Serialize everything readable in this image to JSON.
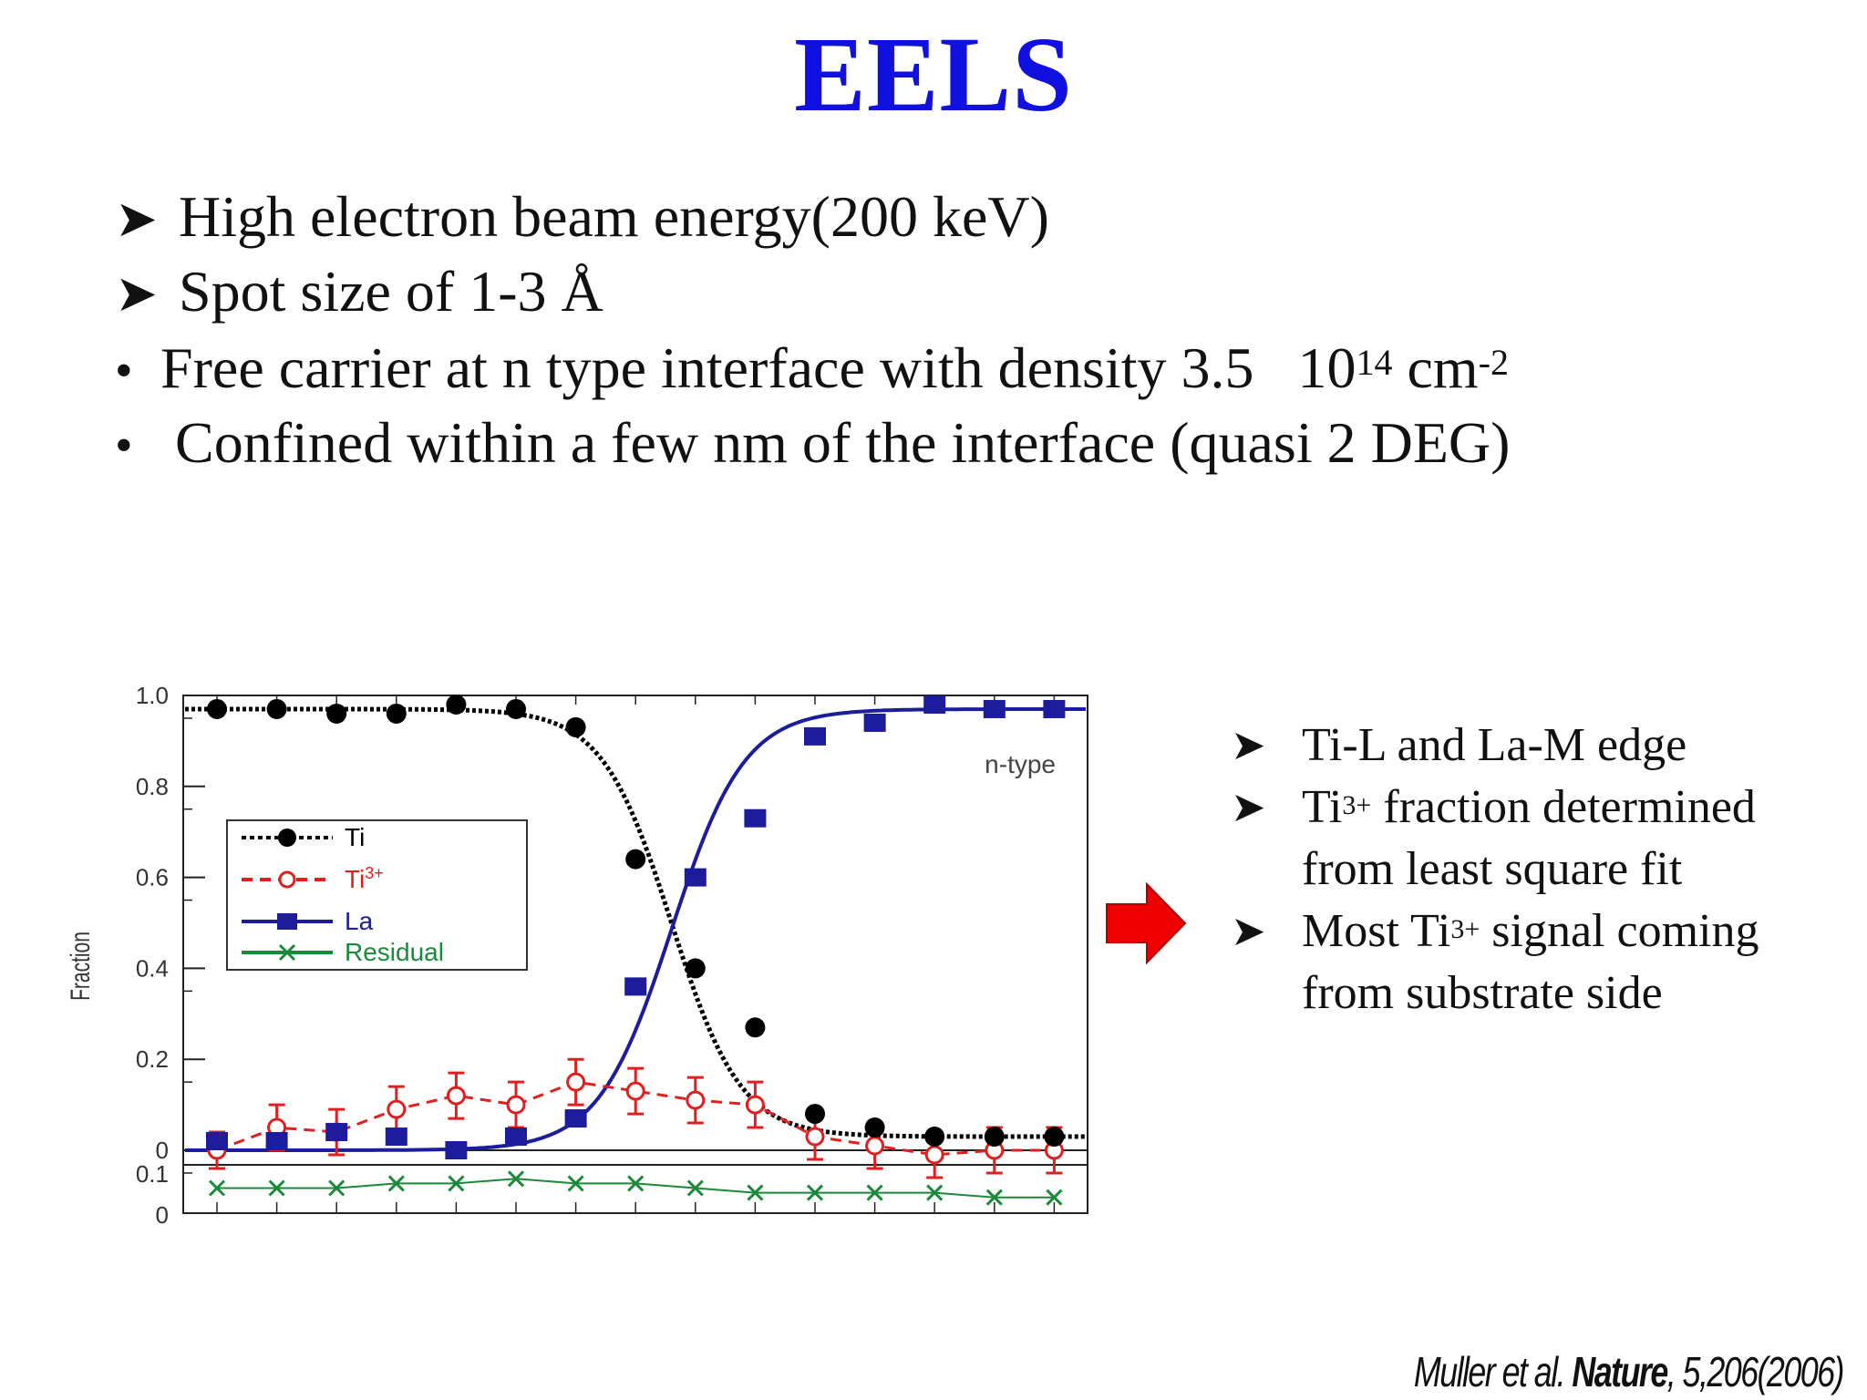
{
  "slide": {
    "title": "EELS",
    "bullets": [
      {
        "marker": "arrow",
        "text": "High electron beam energy(200 keV)"
      },
      {
        "marker": "arrow",
        "text": "Spot size of 1-3 Å"
      },
      {
        "marker": "dot",
        "text": "Free carrier at n type interface with density 3.5   10",
        "sup": "14",
        "text2": " cm",
        "sup2": "-2"
      },
      {
        "marker": "dot",
        "text": " Confined within a few nm of the interface (quasi 2 DEG)"
      }
    ],
    "notes": [
      {
        "pre": "Ti-L and La-M edge",
        "sup": "",
        "post": ""
      },
      {
        "pre": "Ti",
        "sup": "3+",
        "post": " fraction determined from least square fit"
      },
      {
        "pre": "Most Ti",
        "sup": "3+",
        "post": " signal coming from substrate side"
      }
    ],
    "citation": {
      "authors": "Muller et al. ",
      "journal": "Nature",
      "ref": ", 5,206(2006)"
    },
    "colors": {
      "title": "#1010e0",
      "ti": "#000000",
      "ti3": "#e02020",
      "la": "#1c1c9c",
      "residual": "#1a8a3a",
      "arrow": "#ee0000"
    }
  },
  "chart_data": {
    "type": "line",
    "ylabel": "Fraction",
    "annotation": "n-type",
    "ylim": [
      0,
      1.0
    ],
    "yticks": [
      "1.0",
      "0.8",
      "0.6",
      "0.4",
      "0.2",
      "0"
    ],
    "residual_yticks": [
      "0.1",
      "0"
    ],
    "legend_position": "left",
    "grid": false,
    "series": [
      {
        "name": "Ti",
        "marker": "filled-circle",
        "line": "dotted",
        "color": "#000000",
        "values": [
          0.97,
          0.97,
          0.96,
          0.96,
          0.98,
          0.97,
          0.93,
          0.64,
          0.4,
          0.27,
          0.08,
          0.05,
          0.03,
          0.03,
          0.03
        ]
      },
      {
        "name": "Ti3+",
        "marker": "open-circle",
        "line": "dashed",
        "color": "#e02020",
        "values": [
          0.0,
          0.05,
          0.04,
          0.09,
          0.12,
          0.1,
          0.15,
          0.13,
          0.11,
          0.1,
          0.03,
          0.01,
          -0.01,
          0.0,
          0.0
        ],
        "errors": [
          0.04,
          0.05,
          0.05,
          0.05,
          0.05,
          0.05,
          0.05,
          0.05,
          0.05,
          0.05,
          0.05,
          0.05,
          0.05,
          0.05,
          0.05
        ]
      },
      {
        "name": "La",
        "marker": "filled-square",
        "line": "solid",
        "color": "#1c1c9c",
        "values": [
          0.02,
          0.02,
          0.04,
          0.03,
          0.0,
          0.03,
          0.07,
          0.36,
          0.6,
          0.73,
          0.91,
          0.94,
          0.98,
          0.97,
          0.97
        ]
      },
      {
        "name": "Residual",
        "marker": "cross",
        "line": "solid",
        "color": "#1a8a3a",
        "values": [
          0.05,
          0.05,
          0.05,
          0.06,
          0.06,
          0.07,
          0.06,
          0.06,
          0.05,
          0.04,
          0.04,
          0.04,
          0.04,
          0.03,
          0.03
        ]
      }
    ],
    "legend_labels": {
      "Ti": "Ti",
      "Ti3+": "Ti",
      "Ti3+_sup": "3+",
      "La": "La",
      "Residual": "Residual"
    }
  }
}
